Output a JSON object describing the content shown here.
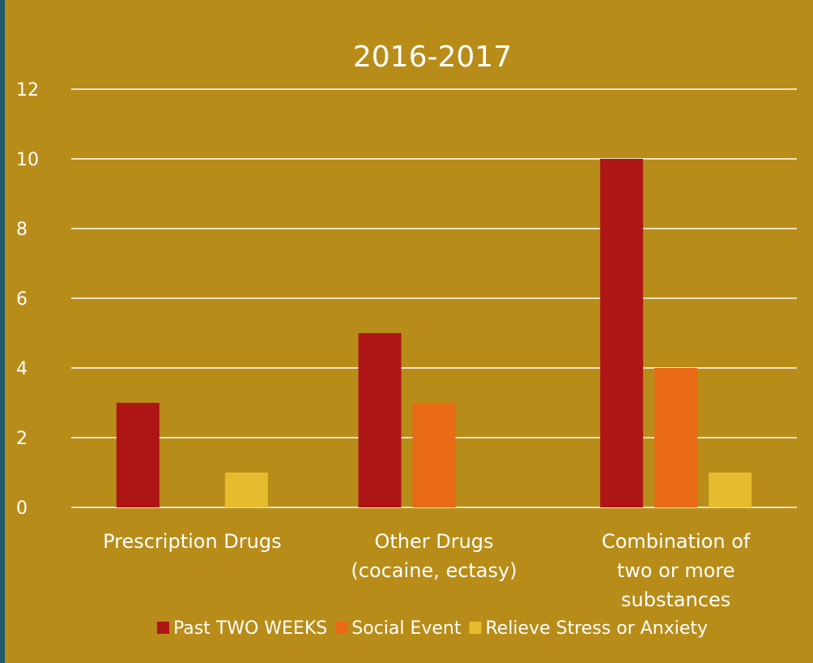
{
  "colors": {
    "background": "#b88c18",
    "frame": "#1f5a6b",
    "grid": "#ffffff",
    "text": "#ffffff"
  },
  "chart_data": {
    "type": "bar",
    "title": "2016-2017",
    "xlabel": "",
    "ylabel": "",
    "ylim": [
      0,
      12
    ],
    "yticks": [
      0,
      2,
      4,
      6,
      8,
      10,
      12
    ],
    "grid": true,
    "legend_position": "bottom",
    "categories": [
      "Prescription Drugs",
      "Other Drugs (cocaine, ectasy)",
      "Combination of two or more substances"
    ],
    "category_lines": [
      [
        "Prescription Drugs"
      ],
      [
        "Other Drugs",
        "(cocaine, ectasy)"
      ],
      [
        "Combination of",
        "two or more",
        "substances"
      ]
    ],
    "series": [
      {
        "name": "Past TWO WEEKS",
        "color": "#ae1515",
        "values": [
          3,
          5,
          10
        ]
      },
      {
        "name": "Social Event",
        "color": "#e86a14",
        "values": [
          0,
          3,
          4
        ]
      },
      {
        "name": "Relieve Stress or Anxiety",
        "color": "#e6bb2e",
        "values": [
          1,
          0,
          1
        ]
      }
    ]
  }
}
